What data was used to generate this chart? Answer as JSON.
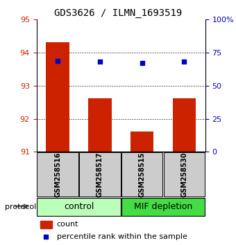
{
  "title": "GDS3626 / ILMN_1693519",
  "samples": [
    "GSM258516",
    "GSM258517",
    "GSM258515",
    "GSM258530"
  ],
  "bar_values": [
    94.32,
    92.62,
    91.62,
    92.62
  ],
  "percentile_values": [
    69,
    68,
    67,
    68
  ],
  "bar_color": "#cc2200",
  "percentile_color": "#0000cc",
  "ylim_left": [
    91,
    95
  ],
  "ylim_right": [
    0,
    100
  ],
  "yticks_left": [
    91,
    92,
    93,
    94,
    95
  ],
  "yticks_right": [
    0,
    25,
    50,
    75,
    100
  ],
  "ytick_labels_right": [
    "0",
    "25",
    "50",
    "75",
    "100%"
  ],
  "groups": [
    {
      "label": "control",
      "span": [
        0,
        2
      ],
      "color": "#bbffbb"
    },
    {
      "label": "MIF depletion",
      "span": [
        2,
        4
      ],
      "color": "#44dd44"
    }
  ],
  "legend_count_label": "count",
  "legend_pct_label": "percentile rank within the sample",
  "protocol_label": "protocol",
  "bar_bottom": 91,
  "tick_label_color_left": "#cc2200",
  "tick_label_color_right": "#0000cc",
  "x_positions": [
    0,
    1,
    2,
    3
  ],
  "bar_width": 0.55,
  "sample_box_color": "#cccccc",
  "title_fontsize": 10,
  "tick_fontsize": 8,
  "sample_fontsize": 7,
  "group_fontsize": 9
}
